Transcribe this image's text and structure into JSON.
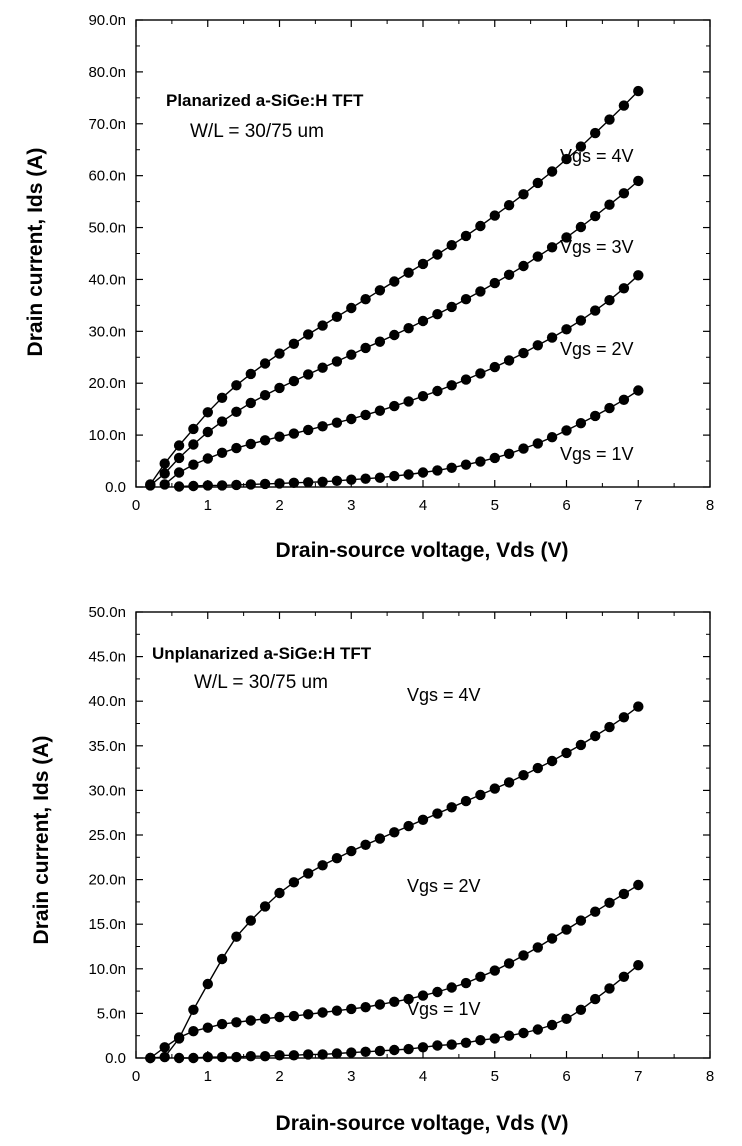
{
  "chart_data": [
    {
      "type": "scatter",
      "title": "Planarized a-SiGe:H TFT",
      "subtitle": "W/L = 30/75 um",
      "xlabel": "Drain-source voltage, Vds (V)",
      "ylabel": "Drain current, Ids (A)",
      "xlim": [
        0,
        8
      ],
      "ylim": [
        0,
        90
      ],
      "xticks": [
        0,
        1,
        2,
        3,
        4,
        5,
        6,
        7,
        8
      ],
      "yticks": [
        0,
        10,
        20,
        30,
        40,
        50,
        60,
        70,
        80,
        90
      ],
      "ytick_labels": [
        "0.0",
        "10.0n",
        "20.0n",
        "30.0n",
        "40.0n",
        "50.0n",
        "60.0n",
        "70.0n",
        "80.0n",
        "90.0n"
      ],
      "grid": false,
      "series": [
        {
          "name": "Vgs = 4V",
          "x": [
            0.2,
            0.4,
            0.6,
            0.8,
            1,
            1.2,
            1.4,
            1.6,
            1.8,
            2,
            2.2,
            2.4,
            2.6,
            2.8,
            3,
            3.2,
            3.4,
            3.6,
            3.8,
            4,
            4.2,
            4.4,
            4.6,
            4.8,
            5,
            5.2,
            5.4,
            5.6,
            5.8,
            6,
            6.2,
            6.4,
            6.6,
            6.8,
            7
          ],
          "y": [
            0.5,
            4.5,
            8.0,
            11.2,
            14.4,
            17.2,
            19.6,
            21.8,
            23.8,
            25.7,
            27.6,
            29.4,
            31.1,
            32.8,
            34.5,
            36.2,
            37.9,
            39.6,
            41.3,
            43.0,
            44.8,
            46.6,
            48.4,
            50.3,
            52.3,
            54.3,
            56.4,
            58.6,
            60.8,
            63.2,
            65.6,
            68.2,
            70.8,
            73.5,
            76.3
          ]
        },
        {
          "name": "Vgs = 3V",
          "x": [
            0.2,
            0.4,
            0.6,
            0.8,
            1,
            1.2,
            1.4,
            1.6,
            1.8,
            2,
            2.2,
            2.4,
            2.6,
            2.8,
            3,
            3.2,
            3.4,
            3.6,
            3.8,
            4,
            4.2,
            4.4,
            4.6,
            4.8,
            5,
            5.2,
            5.4,
            5.6,
            5.8,
            6,
            6.2,
            6.4,
            6.6,
            6.8,
            7
          ],
          "y": [
            0.3,
            2.6,
            5.6,
            8.2,
            10.6,
            12.6,
            14.5,
            16.2,
            17.7,
            19.1,
            20.4,
            21.7,
            23.0,
            24.2,
            25.5,
            26.8,
            28.0,
            29.3,
            30.6,
            32.0,
            33.3,
            34.7,
            36.2,
            37.7,
            39.3,
            40.9,
            42.6,
            44.4,
            46.2,
            48.1,
            50.1,
            52.2,
            54.4,
            56.6,
            59.0
          ]
        },
        {
          "name": "Vgs = 2V",
          "x": [
            0.4,
            0.6,
            0.8,
            1,
            1.2,
            1.4,
            1.6,
            1.8,
            2,
            2.2,
            2.4,
            2.6,
            2.8,
            3,
            3.2,
            3.4,
            3.6,
            3.8,
            4,
            4.2,
            4.4,
            4.6,
            4.8,
            5,
            5.2,
            5.4,
            5.6,
            5.8,
            6,
            6.2,
            6.4,
            6.6,
            6.8,
            7
          ],
          "y": [
            0.5,
            2.8,
            4.3,
            5.5,
            6.6,
            7.5,
            8.3,
            9.0,
            9.7,
            10.3,
            11.0,
            11.7,
            12.4,
            13.1,
            13.9,
            14.7,
            15.6,
            16.5,
            17.5,
            18.5,
            19.6,
            20.7,
            21.9,
            23.1,
            24.4,
            25.8,
            27.3,
            28.8,
            30.4,
            32.1,
            34.0,
            36.0,
            38.3,
            40.8
          ]
        },
        {
          "name": "Vgs = 1V",
          "x": [
            0.6,
            0.8,
            1,
            1.2,
            1.4,
            1.6,
            1.8,
            2,
            2.2,
            2.4,
            2.6,
            2.8,
            3,
            3.2,
            3.4,
            3.6,
            3.8,
            4,
            4.2,
            4.4,
            4.6,
            4.8,
            5,
            5.2,
            5.4,
            5.6,
            5.8,
            6,
            6.2,
            6.4,
            6.6,
            6.8,
            7
          ],
          "y": [
            0.1,
            0.2,
            0.3,
            0.3,
            0.4,
            0.5,
            0.6,
            0.7,
            0.8,
            0.9,
            1.0,
            1.2,
            1.4,
            1.6,
            1.8,
            2.1,
            2.4,
            2.8,
            3.2,
            3.7,
            4.3,
            4.9,
            5.6,
            6.4,
            7.4,
            8.4,
            9.6,
            10.9,
            12.3,
            13.7,
            15.2,
            16.8,
            18.6
          ]
        }
      ],
      "annotations": [
        "Vgs = 4V",
        "Vgs = 3V",
        "Vgs = 2V",
        "Vgs = 1V"
      ]
    },
    {
      "type": "scatter",
      "title": "Unplanarized a-SiGe:H TFT",
      "subtitle": "W/L = 30/75 um",
      "xlabel": "Drain-source voltage, Vds (V)",
      "ylabel": "Drain current, Ids (A)",
      "xlim": [
        0,
        8
      ],
      "ylim": [
        0,
        50
      ],
      "xticks": [
        0,
        1,
        2,
        3,
        4,
        5,
        6,
        7,
        8
      ],
      "yticks": [
        0,
        5,
        10,
        15,
        20,
        25,
        30,
        35,
        40,
        45,
        50
      ],
      "ytick_labels": [
        "0.0",
        "5.0n",
        "10.0n",
        "15.0n",
        "20.0n",
        "25.0n",
        "30.0n",
        "35.0n",
        "40.0n",
        "45.0n",
        "50.0n"
      ],
      "grid": false,
      "series": [
        {
          "name": "Vgs = 4V",
          "x": [
            0.2,
            0.4,
            0.6,
            0.8,
            1,
            1.2,
            1.4,
            1.6,
            1.8,
            2,
            2.2,
            2.4,
            2.6,
            2.8,
            3,
            3.2,
            3.4,
            3.6,
            3.8,
            4,
            4.2,
            4.4,
            4.6,
            4.8,
            5,
            5.2,
            5.4,
            5.6,
            5.8,
            6,
            6.2,
            6.4,
            6.6,
            6.8,
            7
          ],
          "y": [
            0.0,
            0.1,
            2.2,
            5.4,
            8.3,
            11.1,
            13.6,
            15.4,
            17.0,
            18.5,
            19.7,
            20.7,
            21.6,
            22.4,
            23.2,
            23.9,
            24.6,
            25.3,
            26.0,
            26.7,
            27.4,
            28.1,
            28.8,
            29.5,
            30.2,
            30.9,
            31.7,
            32.5,
            33.3,
            34.2,
            35.1,
            36.1,
            37.1,
            38.2,
            39.4
          ]
        },
        {
          "name": "Vgs = 2V",
          "x": [
            0.2,
            0.4,
            0.6,
            0.8,
            1,
            1.2,
            1.4,
            1.6,
            1.8,
            2,
            2.2,
            2.4,
            2.6,
            2.8,
            3,
            3.2,
            3.4,
            3.6,
            3.8,
            4,
            4.2,
            4.4,
            4.6,
            4.8,
            5,
            5.2,
            5.4,
            5.6,
            5.8,
            6,
            6.2,
            6.4,
            6.6,
            6.8,
            7
          ],
          "y": [
            0.0,
            1.2,
            2.3,
            3.0,
            3.4,
            3.8,
            4.0,
            4.2,
            4.4,
            4.6,
            4.7,
            4.9,
            5.1,
            5.3,
            5.5,
            5.7,
            6.0,
            6.3,
            6.6,
            7.0,
            7.4,
            7.9,
            8.4,
            9.1,
            9.8,
            10.6,
            11.5,
            12.4,
            13.4,
            14.4,
            15.4,
            16.4,
            17.4,
            18.4,
            19.4
          ]
        },
        {
          "name": "Vgs = 1V",
          "x": [
            0.6,
            0.8,
            1,
            1.2,
            1.4,
            1.6,
            1.8,
            2,
            2.2,
            2.4,
            2.6,
            2.8,
            3,
            3.2,
            3.4,
            3.6,
            3.8,
            4,
            4.2,
            4.4,
            4.6,
            4.8,
            5,
            5.2,
            5.4,
            5.6,
            5.8,
            6,
            6.2,
            6.4,
            6.6,
            6.8,
            7
          ],
          "y": [
            0.0,
            0.0,
            0.1,
            0.1,
            0.1,
            0.2,
            0.2,
            0.3,
            0.3,
            0.4,
            0.4,
            0.5,
            0.6,
            0.7,
            0.8,
            0.9,
            1.0,
            1.2,
            1.4,
            1.5,
            1.7,
            2.0,
            2.2,
            2.5,
            2.8,
            3.2,
            3.7,
            4.4,
            5.4,
            6.6,
            7.8,
            9.1,
            10.4
          ]
        }
      ],
      "annotations": [
        "Vgs = 4V",
        "Vgs = 2V",
        "Vgs = 1V"
      ]
    }
  ]
}
